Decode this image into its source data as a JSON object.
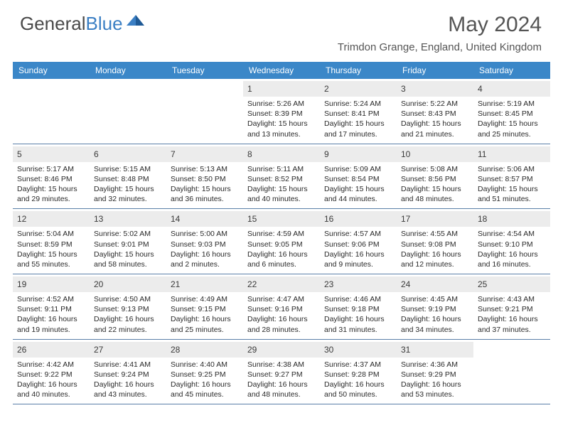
{
  "brand": {
    "part1": "General",
    "part2": "Blue"
  },
  "title": "May 2024",
  "location": "Trimdon Grange, England, United Kingdom",
  "colors": {
    "header_bg": "#3b87c8",
    "daynum_bg": "#ececec",
    "week_border": "#5a7fa8",
    "text": "#2a2a2a",
    "title_text": "#555555"
  },
  "day_names": [
    "Sunday",
    "Monday",
    "Tuesday",
    "Wednesday",
    "Thursday",
    "Friday",
    "Saturday"
  ],
  "weeks": [
    [
      null,
      null,
      null,
      {
        "n": "1",
        "sr": "5:26 AM",
        "ss": "8:39 PM",
        "dl": "15 hours and 13 minutes."
      },
      {
        "n": "2",
        "sr": "5:24 AM",
        "ss": "8:41 PM",
        "dl": "15 hours and 17 minutes."
      },
      {
        "n": "3",
        "sr": "5:22 AM",
        "ss": "8:43 PM",
        "dl": "15 hours and 21 minutes."
      },
      {
        "n": "4",
        "sr": "5:19 AM",
        "ss": "8:45 PM",
        "dl": "15 hours and 25 minutes."
      }
    ],
    [
      {
        "n": "5",
        "sr": "5:17 AM",
        "ss": "8:46 PM",
        "dl": "15 hours and 29 minutes."
      },
      {
        "n": "6",
        "sr": "5:15 AM",
        "ss": "8:48 PM",
        "dl": "15 hours and 32 minutes."
      },
      {
        "n": "7",
        "sr": "5:13 AM",
        "ss": "8:50 PM",
        "dl": "15 hours and 36 minutes."
      },
      {
        "n": "8",
        "sr": "5:11 AM",
        "ss": "8:52 PM",
        "dl": "15 hours and 40 minutes."
      },
      {
        "n": "9",
        "sr": "5:09 AM",
        "ss": "8:54 PM",
        "dl": "15 hours and 44 minutes."
      },
      {
        "n": "10",
        "sr": "5:08 AM",
        "ss": "8:56 PM",
        "dl": "15 hours and 48 minutes."
      },
      {
        "n": "11",
        "sr": "5:06 AM",
        "ss": "8:57 PM",
        "dl": "15 hours and 51 minutes."
      }
    ],
    [
      {
        "n": "12",
        "sr": "5:04 AM",
        "ss": "8:59 PM",
        "dl": "15 hours and 55 minutes."
      },
      {
        "n": "13",
        "sr": "5:02 AM",
        "ss": "9:01 PM",
        "dl": "15 hours and 58 minutes."
      },
      {
        "n": "14",
        "sr": "5:00 AM",
        "ss": "9:03 PM",
        "dl": "16 hours and 2 minutes."
      },
      {
        "n": "15",
        "sr": "4:59 AM",
        "ss": "9:05 PM",
        "dl": "16 hours and 6 minutes."
      },
      {
        "n": "16",
        "sr": "4:57 AM",
        "ss": "9:06 PM",
        "dl": "16 hours and 9 minutes."
      },
      {
        "n": "17",
        "sr": "4:55 AM",
        "ss": "9:08 PM",
        "dl": "16 hours and 12 minutes."
      },
      {
        "n": "18",
        "sr": "4:54 AM",
        "ss": "9:10 PM",
        "dl": "16 hours and 16 minutes."
      }
    ],
    [
      {
        "n": "19",
        "sr": "4:52 AM",
        "ss": "9:11 PM",
        "dl": "16 hours and 19 minutes."
      },
      {
        "n": "20",
        "sr": "4:50 AM",
        "ss": "9:13 PM",
        "dl": "16 hours and 22 minutes."
      },
      {
        "n": "21",
        "sr": "4:49 AM",
        "ss": "9:15 PM",
        "dl": "16 hours and 25 minutes."
      },
      {
        "n": "22",
        "sr": "4:47 AM",
        "ss": "9:16 PM",
        "dl": "16 hours and 28 minutes."
      },
      {
        "n": "23",
        "sr": "4:46 AM",
        "ss": "9:18 PM",
        "dl": "16 hours and 31 minutes."
      },
      {
        "n": "24",
        "sr": "4:45 AM",
        "ss": "9:19 PM",
        "dl": "16 hours and 34 minutes."
      },
      {
        "n": "25",
        "sr": "4:43 AM",
        "ss": "9:21 PM",
        "dl": "16 hours and 37 minutes."
      }
    ],
    [
      {
        "n": "26",
        "sr": "4:42 AM",
        "ss": "9:22 PM",
        "dl": "16 hours and 40 minutes."
      },
      {
        "n": "27",
        "sr": "4:41 AM",
        "ss": "9:24 PM",
        "dl": "16 hours and 43 minutes."
      },
      {
        "n": "28",
        "sr": "4:40 AM",
        "ss": "9:25 PM",
        "dl": "16 hours and 45 minutes."
      },
      {
        "n": "29",
        "sr": "4:38 AM",
        "ss": "9:27 PM",
        "dl": "16 hours and 48 minutes."
      },
      {
        "n": "30",
        "sr": "4:37 AM",
        "ss": "9:28 PM",
        "dl": "16 hours and 50 minutes."
      },
      {
        "n": "31",
        "sr": "4:36 AM",
        "ss": "9:29 PM",
        "dl": "16 hours and 53 minutes."
      },
      null
    ]
  ],
  "labels": {
    "sunrise": "Sunrise:",
    "sunset": "Sunset:",
    "daylight": "Daylight:"
  }
}
